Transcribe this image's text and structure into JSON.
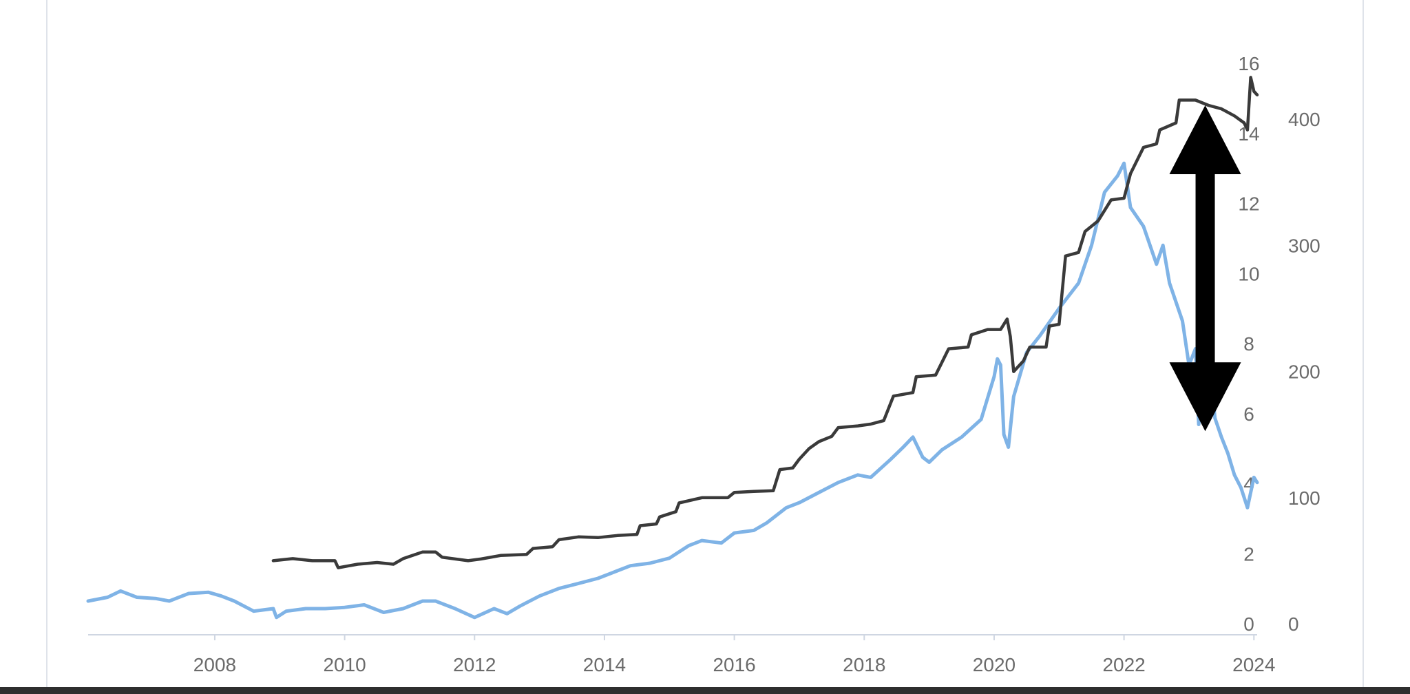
{
  "colors": {
    "price_line": "#7fb3e6",
    "metric_line": "#3a3a3a",
    "axis_line": "#cfd6e2",
    "tick_text": "#6b6b6b",
    "arrow": "#000000",
    "frame": "#dfe3ea",
    "bottom_bar": "#2f2f2f"
  },
  "chart_data": {
    "type": "line",
    "title": "",
    "xlabel": "",
    "ylabel": "",
    "x_axis": {
      "ticks": [
        "2008",
        "2010",
        "2012",
        "2014",
        "2016",
        "2018",
        "2020",
        "2022",
        "2024"
      ],
      "range": [
        2006.05,
        2024.05
      ]
    },
    "y_axis_inner": {
      "ticks": [
        "0",
        "2",
        "4",
        "6",
        "8",
        "10",
        "12",
        "14",
        "16"
      ],
      "range": [
        0,
        16
      ]
    },
    "y_axis_outer": {
      "ticks": [
        "0",
        "100",
        "200",
        "300",
        "400"
      ],
      "range": [
        0,
        450
      ]
    },
    "grid": false,
    "legend": "none",
    "series": [
      {
        "axis": "outer",
        "color_key": "price_line",
        "points": [
          [
            2006.05,
            18
          ],
          [
            2006.35,
            21
          ],
          [
            2006.55,
            26
          ],
          [
            2006.8,
            21
          ],
          [
            2007.1,
            20
          ],
          [
            2007.3,
            18
          ],
          [
            2007.6,
            24
          ],
          [
            2007.9,
            25
          ],
          [
            2008.1,
            22
          ],
          [
            2008.3,
            18
          ],
          [
            2008.6,
            10
          ],
          [
            2008.9,
            12
          ],
          [
            2008.95,
            5
          ],
          [
            2009.1,
            10
          ],
          [
            2009.4,
            12
          ],
          [
            2009.7,
            12
          ],
          [
            2010.0,
            13
          ],
          [
            2010.3,
            15
          ],
          [
            2010.6,
            9
          ],
          [
            2010.9,
            12
          ],
          [
            2011.2,
            18
          ],
          [
            2011.4,
            18
          ],
          [
            2011.7,
            12
          ],
          [
            2012.0,
            5
          ],
          [
            2012.3,
            12
          ],
          [
            2012.5,
            8
          ],
          [
            2012.7,
            14
          ],
          [
            2013.0,
            22
          ],
          [
            2013.3,
            28
          ],
          [
            2013.6,
            32
          ],
          [
            2013.9,
            36
          ],
          [
            2014.2,
            42
          ],
          [
            2014.4,
            46
          ],
          [
            2014.7,
            48
          ],
          [
            2015.0,
            52
          ],
          [
            2015.3,
            62
          ],
          [
            2015.5,
            66
          ],
          [
            2015.8,
            64
          ],
          [
            2016.0,
            72
          ],
          [
            2016.3,
            74
          ],
          [
            2016.5,
            80
          ],
          [
            2016.8,
            92
          ],
          [
            2017.0,
            96
          ],
          [
            2017.3,
            104
          ],
          [
            2017.6,
            112
          ],
          [
            2017.9,
            118
          ],
          [
            2018.1,
            116
          ],
          [
            2018.4,
            130
          ],
          [
            2018.6,
            140
          ],
          [
            2018.75,
            148
          ],
          [
            2018.9,
            132
          ],
          [
            2019.0,
            128
          ],
          [
            2019.2,
            138
          ],
          [
            2019.5,
            148
          ],
          [
            2019.8,
            162
          ],
          [
            2020.0,
            196
          ],
          [
            2020.05,
            210
          ],
          [
            2020.1,
            205
          ],
          [
            2020.15,
            150
          ],
          [
            2020.22,
            140
          ],
          [
            2020.3,
            180
          ],
          [
            2020.5,
            215
          ],
          [
            2020.7,
            228
          ],
          [
            2021.0,
            250
          ],
          [
            2021.3,
            270
          ],
          [
            2021.5,
            300
          ],
          [
            2021.7,
            342
          ],
          [
            2021.9,
            355
          ],
          [
            2022.0,
            365
          ],
          [
            2022.1,
            330
          ],
          [
            2022.3,
            315
          ],
          [
            2022.5,
            285
          ],
          [
            2022.6,
            300
          ],
          [
            2022.7,
            270
          ],
          [
            2022.8,
            255
          ],
          [
            2022.9,
            240
          ],
          [
            2023.0,
            205
          ],
          [
            2023.1,
            218
          ],
          [
            2023.15,
            158
          ],
          [
            2023.2,
            195
          ],
          [
            2023.3,
            210
          ],
          [
            2023.35,
            190
          ],
          [
            2023.4,
            163
          ],
          [
            2023.5,
            148
          ],
          [
            2023.6,
            135
          ],
          [
            2023.7,
            118
          ],
          [
            2023.8,
            108
          ],
          [
            2023.9,
            92
          ],
          [
            2024.0,
            116
          ],
          [
            2024.05,
            112
          ]
        ]
      },
      {
        "axis": "inner",
        "color_key": "metric_line",
        "points": [
          [
            2008.9,
            1.8
          ],
          [
            2009.2,
            1.86
          ],
          [
            2009.5,
            1.8
          ],
          [
            2009.85,
            1.8
          ],
          [
            2009.9,
            1.6
          ],
          [
            2010.2,
            1.7
          ],
          [
            2010.5,
            1.75
          ],
          [
            2010.75,
            1.7
          ],
          [
            2010.9,
            1.86
          ],
          [
            2011.2,
            2.05
          ],
          [
            2011.4,
            2.05
          ],
          [
            2011.5,
            1.9
          ],
          [
            2011.9,
            1.8
          ],
          [
            2012.1,
            1.85
          ],
          [
            2012.4,
            1.95
          ],
          [
            2012.8,
            1.98
          ],
          [
            2012.9,
            2.15
          ],
          [
            2013.2,
            2.2
          ],
          [
            2013.3,
            2.4
          ],
          [
            2013.6,
            2.48
          ],
          [
            2013.9,
            2.46
          ],
          [
            2014.2,
            2.52
          ],
          [
            2014.5,
            2.55
          ],
          [
            2014.55,
            2.8
          ],
          [
            2014.8,
            2.85
          ],
          [
            2014.85,
            3.05
          ],
          [
            2015.1,
            3.2
          ],
          [
            2015.15,
            3.45
          ],
          [
            2015.5,
            3.6
          ],
          [
            2015.9,
            3.6
          ],
          [
            2016.0,
            3.75
          ],
          [
            2016.3,
            3.78
          ],
          [
            2016.6,
            3.8
          ],
          [
            2016.7,
            4.4
          ],
          [
            2016.9,
            4.45
          ],
          [
            2017.0,
            4.7
          ],
          [
            2017.15,
            5.0
          ],
          [
            2017.3,
            5.2
          ],
          [
            2017.5,
            5.35
          ],
          [
            2017.6,
            5.6
          ],
          [
            2017.9,
            5.65
          ],
          [
            2018.1,
            5.7
          ],
          [
            2018.3,
            5.8
          ],
          [
            2018.45,
            6.5
          ],
          [
            2018.75,
            6.6
          ],
          [
            2018.8,
            7.05
          ],
          [
            2019.1,
            7.1
          ],
          [
            2019.3,
            7.85
          ],
          [
            2019.6,
            7.9
          ],
          [
            2019.65,
            8.25
          ],
          [
            2019.9,
            8.4
          ],
          [
            2020.1,
            8.4
          ],
          [
            2020.2,
            8.7
          ],
          [
            2020.25,
            8.2
          ],
          [
            2020.3,
            7.2
          ],
          [
            2020.45,
            7.5
          ],
          [
            2020.55,
            7.9
          ],
          [
            2020.8,
            7.9
          ],
          [
            2020.85,
            8.5
          ],
          [
            2021.0,
            8.55
          ],
          [
            2021.1,
            10.5
          ],
          [
            2021.3,
            10.6
          ],
          [
            2021.4,
            11.2
          ],
          [
            2021.6,
            11.5
          ],
          [
            2021.8,
            12.1
          ],
          [
            2022.0,
            12.15
          ],
          [
            2022.1,
            12.85
          ],
          [
            2022.3,
            13.6
          ],
          [
            2022.5,
            13.7
          ],
          [
            2022.55,
            14.1
          ],
          [
            2022.8,
            14.3
          ],
          [
            2022.85,
            14.95
          ],
          [
            2023.1,
            14.95
          ],
          [
            2023.3,
            14.8
          ],
          [
            2023.5,
            14.7
          ],
          [
            2023.7,
            14.5
          ],
          [
            2023.85,
            14.3
          ],
          [
            2023.9,
            14.1
          ],
          [
            2023.95,
            15.6
          ],
          [
            2024.0,
            15.2
          ],
          [
            2024.05,
            15.1
          ]
        ]
      }
    ],
    "annotations": [
      {
        "type": "double-arrow",
        "x": 2023.25,
        "y_top": 14.8,
        "y_bottom": 5.5,
        "axis": "inner",
        "color_key": "arrow"
      }
    ]
  }
}
